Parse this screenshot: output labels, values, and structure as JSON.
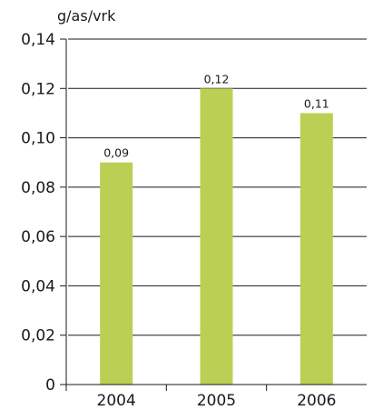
{
  "chart_data": {
    "type": "bar",
    "title": "",
    "xlabel": "",
    "ylabel": "g/as/vrk",
    "categories": [
      "2004",
      "2005",
      "2006"
    ],
    "values": [
      0.09,
      0.12,
      0.11
    ],
    "value_labels": [
      "0,09",
      "0,12",
      "0,11"
    ],
    "ylim": [
      0,
      0.14
    ],
    "yticks": [
      0,
      0.02,
      0.04,
      0.06,
      0.08,
      0.1,
      0.12,
      0.14
    ],
    "ytick_labels": [
      "0",
      "0,02",
      "0,04",
      "0,06",
      "0,08",
      "0,10",
      "0,12",
      "0,14"
    ],
    "grid": true,
    "legend": "none",
    "bar_color": "#bccf55",
    "grid_color": "#1a1a1a"
  }
}
